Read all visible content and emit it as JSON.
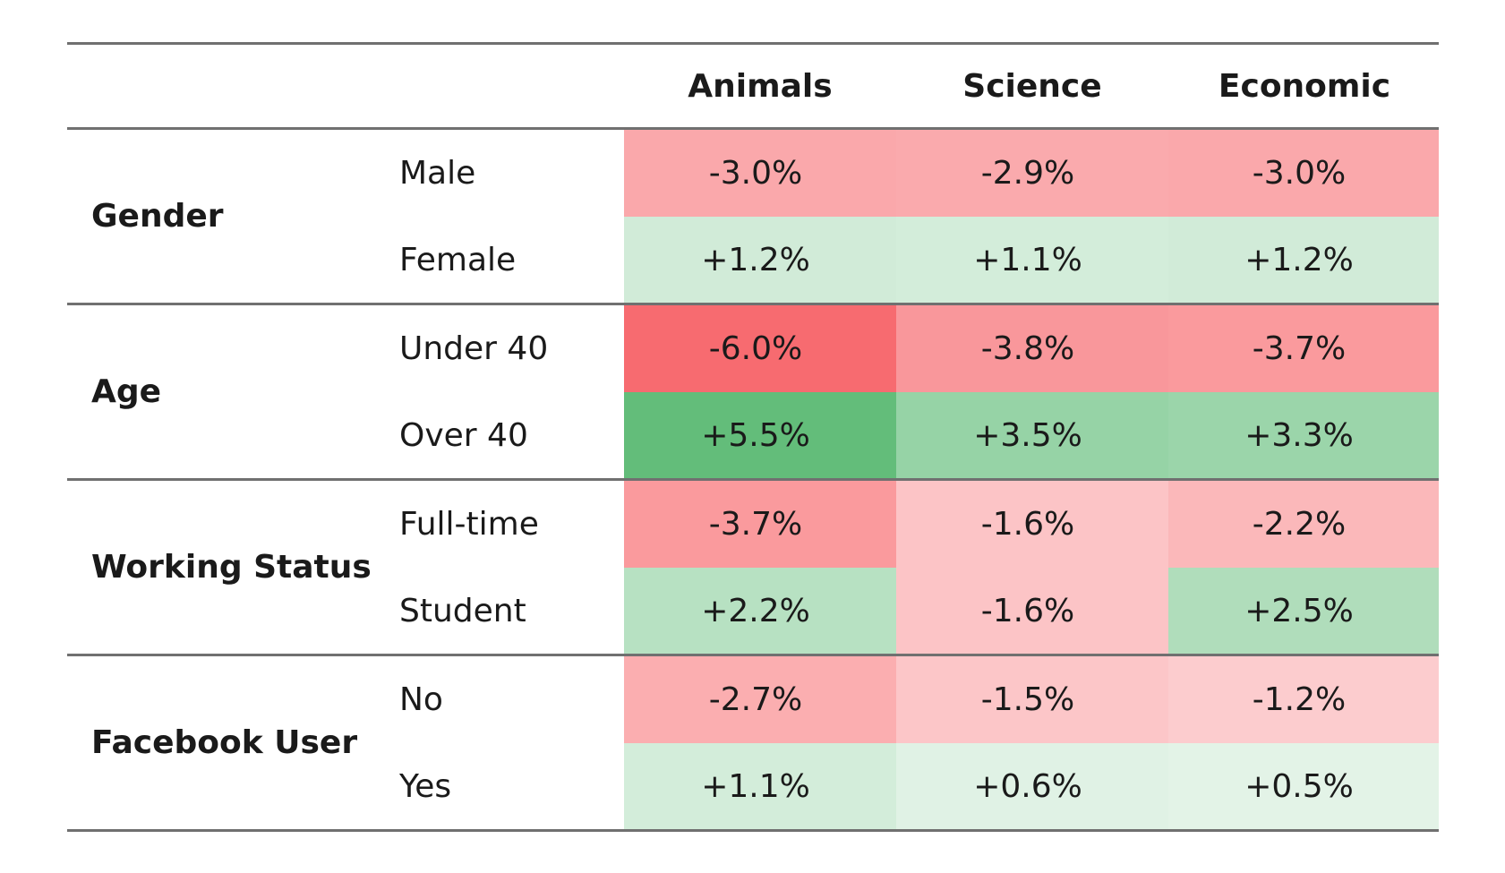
{
  "chart_data": {
    "type": "table",
    "columns": [
      "Animals",
      "Science",
      "Economic"
    ],
    "groups": [
      {
        "label": "Gender",
        "rows": [
          {
            "label": "Male",
            "values": [
              "-3.0%",
              "-2.9%",
              "-3.0%"
            ],
            "numbers": [
              -3.0,
              -2.9,
              -3.0
            ]
          },
          {
            "label": "Female",
            "values": [
              "+1.2%",
              "+1.1%",
              "+1.2%"
            ],
            "numbers": [
              1.2,
              1.1,
              1.2
            ]
          }
        ]
      },
      {
        "label": "Age",
        "rows": [
          {
            "label": "Under 40",
            "values": [
              "-6.0%",
              "-3.8%",
              "-3.7%"
            ],
            "numbers": [
              -6.0,
              -3.8,
              -3.7
            ]
          },
          {
            "label": "Over 40",
            "values": [
              "+5.5%",
              "+3.5%",
              "+3.3%"
            ],
            "numbers": [
              5.5,
              3.5,
              3.3
            ]
          }
        ]
      },
      {
        "label": "Working Status",
        "rows": [
          {
            "label": "Full-time",
            "values": [
              "-3.7%",
              "-1.6%",
              "-2.2%"
            ],
            "numbers": [
              -3.7,
              -1.6,
              -2.2
            ]
          },
          {
            "label": "Student",
            "values": [
              "+2.2%",
              "-1.6%",
              "+2.5%"
            ],
            "numbers": [
              2.2,
              -1.6,
              2.5
            ]
          }
        ]
      },
      {
        "label": "Facebook User",
        "rows": [
          {
            "label": "No",
            "values": [
              "-2.7%",
              "-1.5%",
              "-1.2%"
            ],
            "numbers": [
              -2.7,
              -1.5,
              -1.2
            ]
          },
          {
            "label": "Yes",
            "values": [
              "+1.1%",
              "+0.6%",
              "+0.5%"
            ],
            "numbers": [
              1.1,
              0.6,
              0.5
            ]
          }
        ]
      }
    ],
    "colors": {
      "negative_max": "#f76b70",
      "positive_max": "#63bd7a",
      "neutral": "#ffffff",
      "rule": "#707070",
      "text": "#1a1a1a"
    }
  }
}
